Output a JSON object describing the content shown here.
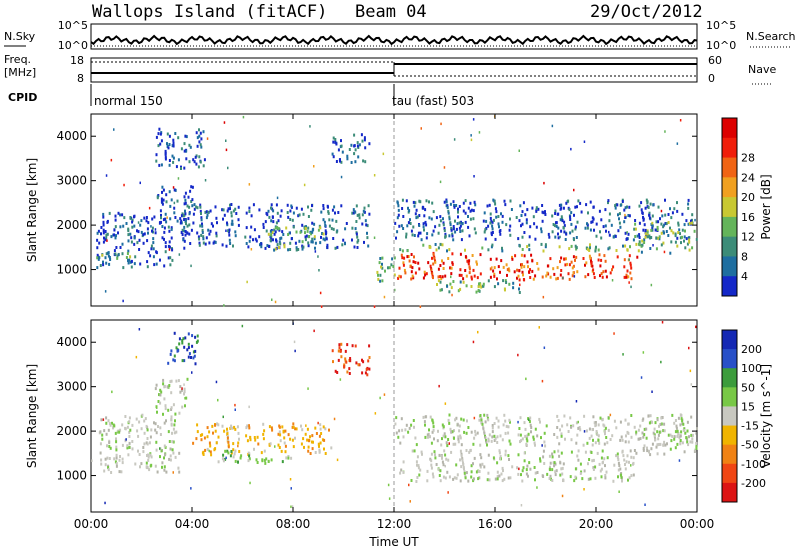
{
  "header": {
    "title": "Wallops Island (fitACF)",
    "beam": "Beam 04",
    "date": "29/Oct/2012"
  },
  "strip": {
    "nsky_label": "N.Sky",
    "nsky_ticks": [
      "10^5",
      "10^0"
    ],
    "nsearch_label": "N.Search",
    "freq_label": "Freq.",
    "freq_unit": "[MHz]",
    "freq_ticks": [
      "18",
      "8"
    ],
    "nave_label": "Nave",
    "nave_ticks": [
      "60",
      "0"
    ],
    "cpid_label": "CPID",
    "cpid_modes": [
      "normal 150",
      "tau (fast) 503"
    ]
  },
  "xaxis": {
    "label": "Time UT",
    "ticks": [
      "00:00",
      "04:00",
      "08:00",
      "12:00",
      "16:00",
      "20:00",
      "00:00"
    ]
  },
  "chart_data": [
    {
      "type": "heatmap",
      "panel": "power",
      "x_range_hours": [
        0,
        24
      ],
      "xlabel": "Time UT",
      "ylabel": "Slant Range [km]",
      "y_ticks": [
        1000,
        2000,
        3000,
        4000
      ],
      "ylim": [
        180,
        4500
      ],
      "colorbar": {
        "label": "Power [dB]",
        "ticks": [
          4,
          8,
          12,
          16,
          20,
          24,
          28
        ],
        "colors": [
          "#1428c8",
          "#1e6ea0",
          "#3c8c78",
          "#64b45a",
          "#c8c832",
          "#f0a020",
          "#f06414",
          "#f01e0a",
          "#dc0000"
        ]
      },
      "regions": [
        {
          "t": [
            0.2,
            3.2
          ],
          "r": [
            1050,
            2300
          ],
          "level": "low"
        },
        {
          "t": [
            2.6,
            4.0
          ],
          "r": [
            1800,
            2900
          ],
          "level": "low"
        },
        {
          "t": [
            3.5,
            11.0
          ],
          "r": [
            1500,
            2500
          ],
          "level": "low"
        },
        {
          "t": [
            7.0,
            9.2
          ],
          "r": [
            1450,
            2000
          ],
          "level": "mid"
        },
        {
          "t": [
            0.2,
            1.8
          ],
          "r": [
            1200,
            1400
          ],
          "level": "mid"
        },
        {
          "t": [
            11.3,
            12.0
          ],
          "r": [
            750,
            1300
          ],
          "level": "mid"
        },
        {
          "t": [
            12.1,
            21.6
          ],
          "r": [
            1450,
            1600
          ],
          "level": "mid"
        },
        {
          "t": [
            12.1,
            21.6
          ],
          "r": [
            800,
            1400
          ],
          "level": "high"
        },
        {
          "t": [
            13.5,
            17.0
          ],
          "r": [
            500,
            800
          ],
          "level": "mid"
        },
        {
          "t": [
            12.0,
            23.8
          ],
          "r": [
            1700,
            2600
          ],
          "level": "low"
        },
        {
          "t": [
            21.5,
            24.0
          ],
          "r": [
            1400,
            2100
          ],
          "level": "mid"
        },
        {
          "t": [
            2.5,
            4.5
          ],
          "r": [
            3300,
            4200
          ],
          "level": "low"
        },
        {
          "t": [
            9.5,
            11.0
          ],
          "r": [
            3400,
            4100
          ],
          "level": "low"
        }
      ]
    },
    {
      "type": "heatmap",
      "panel": "velocity",
      "x_range_hours": [
        0,
        24
      ],
      "xlabel": "Time UT",
      "ylabel": "Slant Range [km]",
      "y_ticks": [
        1000,
        2000,
        3000,
        4000
      ],
      "ylim": [
        180,
        4500
      ],
      "colorbar": {
        "label": "Velocity [m s^-1]",
        "ticks": [
          "200",
          "100",
          "50",
          "15",
          "-15",
          "-50",
          "-100",
          "-200"
        ],
        "colors": [
          "#1428b4",
          "#2850c8",
          "#3c9c3c",
          "#78c846",
          "#c8c8c0",
          "#f0b400",
          "#f08214",
          "#f04614",
          "#dc1414"
        ]
      },
      "regions": [
        {
          "t": [
            0.2,
            3.5
          ],
          "r": [
            1100,
            2400
          ],
          "level": "ground"
        },
        {
          "t": [
            2.5,
            3.8
          ],
          "r": [
            2400,
            3200
          ],
          "level": "ground"
        },
        {
          "t": [
            4.0,
            9.5
          ],
          "r": [
            1500,
            2200
          ],
          "level": "orange"
        },
        {
          "t": [
            5.0,
            8.0
          ],
          "r": [
            1300,
            1600
          ],
          "level": "green"
        },
        {
          "t": [
            12.1,
            21.6
          ],
          "r": [
            900,
            1600
          ],
          "level": "ground"
        },
        {
          "t": [
            12.0,
            23.8
          ],
          "r": [
            1700,
            2400
          ],
          "level": "ground"
        },
        {
          "t": [
            21.5,
            24.0
          ],
          "r": [
            1500,
            2100
          ],
          "level": "ground"
        },
        {
          "t": [
            3.0,
            4.2
          ],
          "r": [
            3500,
            4300
          ],
          "level": "blue"
        },
        {
          "t": [
            9.5,
            11.0
          ],
          "r": [
            3300,
            4000
          ],
          "level": "red"
        }
      ]
    }
  ]
}
